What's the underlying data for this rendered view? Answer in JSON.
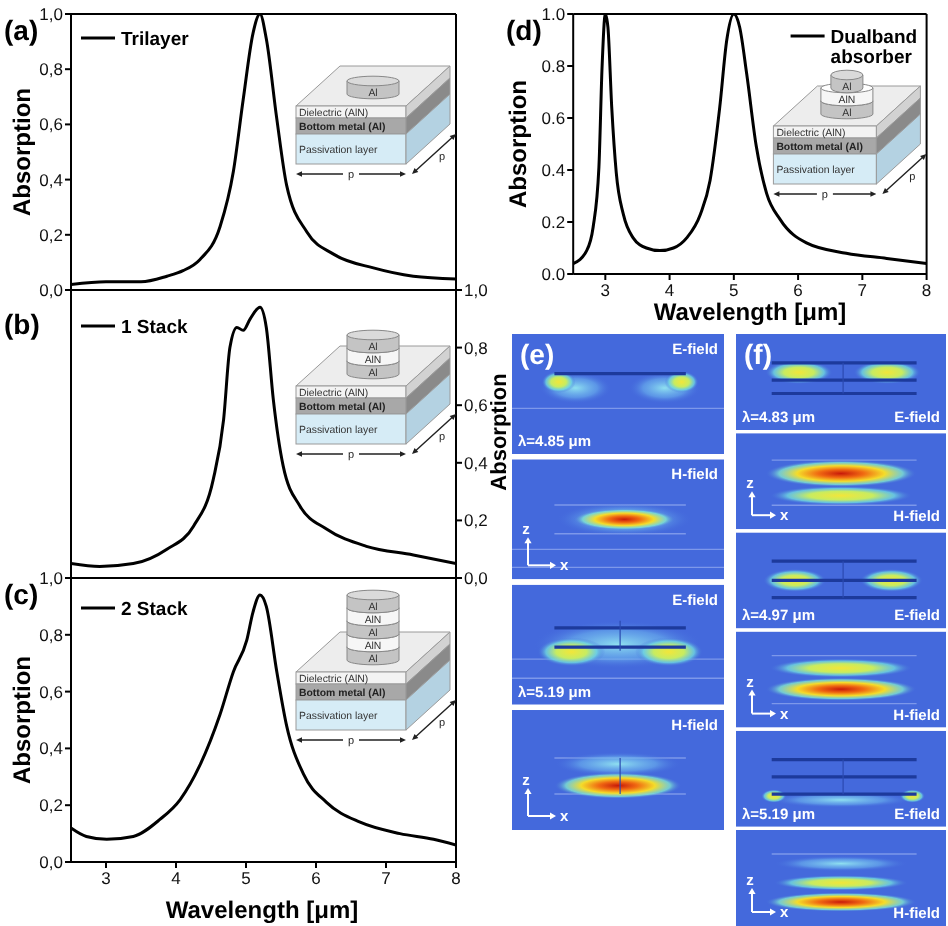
{
  "chart_data": [
    {
      "type": "line",
      "title": "(a)",
      "ylabel": "Absorption",
      "x": [
        2.5,
        3.0,
        3.5,
        3.87,
        4.1,
        4.34,
        4.63,
        4.82,
        4.96,
        5.1,
        5.2,
        5.29,
        5.44,
        5.58,
        5.87,
        6.25,
        6.82,
        7.39,
        8.0
      ],
      "series": [
        {
          "name": "Trilayer",
          "color": "#000000",
          "values": [
            0.02,
            0.03,
            0.03,
            0.05,
            0.07,
            0.11,
            0.23,
            0.43,
            0.69,
            0.93,
            1.0,
            0.91,
            0.62,
            0.38,
            0.21,
            0.13,
            0.08,
            0.05,
            0.04
          ]
        }
      ],
      "xlim": [
        2.5,
        8
      ],
      "xticks": [
        3,
        4,
        5,
        6,
        7,
        8
      ],
      "ylim": [
        0,
        1
      ],
      "yticks": [
        {
          "value": 0,
          "label": "0,0"
        },
        {
          "value": 0.2,
          "label": "0,2"
        },
        {
          "value": 0.4,
          "label": "0,4"
        },
        {
          "value": 0.6,
          "label": "0,6"
        },
        {
          "value": 0.8,
          "label": "0,8"
        },
        {
          "value": 1,
          "label": "1,0"
        }
      ],
      "tick_labels": "y",
      "legend": "top left",
      "annotations": [
        "Al",
        "Dielectric (AlN)",
        "Bottom metal (Al)",
        "Passivation layer",
        "p",
        "p"
      ]
    },
    {
      "type": "line",
      "title": "(b)",
      "ylabel": "Absorption",
      "x": [
        2.5,
        2.91,
        3.39,
        3.87,
        4.25,
        4.53,
        4.68,
        4.77,
        4.87,
        4.96,
        5.06,
        5.2,
        5.29,
        5.39,
        5.53,
        5.77,
        6.15,
        6.72,
        7.39,
        8.0
      ],
      "series": [
        {
          "name": "1 Stack",
          "color": "#000000",
          "values": [
            0.05,
            0.04,
            0.05,
            0.1,
            0.18,
            0.34,
            0.55,
            0.8,
            0.87,
            0.86,
            0.9,
            0.94,
            0.87,
            0.62,
            0.39,
            0.25,
            0.17,
            0.11,
            0.08,
            0.05
          ]
        }
      ],
      "xlim": [
        2.5,
        8
      ],
      "xticks": [
        3,
        4,
        5,
        6,
        7,
        8
      ],
      "ylim": [
        0,
        1
      ],
      "yticks": [
        {
          "value": 0,
          "label": "0,0"
        },
        {
          "value": 0.2,
          "label": "0,2"
        },
        {
          "value": 0.4,
          "label": "0,4"
        },
        {
          "value": 0.6,
          "label": "0,6"
        },
        {
          "value": 0.8,
          "label": "0,8"
        },
        {
          "value": 1,
          "label": "1,0"
        }
      ],
      "tick_labels": "y",
      "legend": "top left",
      "annotations": [
        "Al",
        "AlN",
        "Al",
        "Dielectric (AlN)",
        "Bottom metal (Al)",
        "Passivation layer",
        "p",
        "p"
      ]
    },
    {
      "type": "line",
      "title": "(c)",
      "xlabel": "Wavelength [μm]",
      "ylabel": "Absorption",
      "x": [
        2.5,
        2.72,
        3.01,
        3.39,
        3.77,
        4.06,
        4.34,
        4.63,
        4.82,
        5.01,
        5.1,
        5.2,
        5.29,
        5.44,
        5.58,
        5.82,
        6.15,
        6.63,
        7.2,
        7.68,
        8.0
      ],
      "series": [
        {
          "name": "2 Stack",
          "color": "#000000",
          "values": [
            0.12,
            0.09,
            0.08,
            0.09,
            0.15,
            0.22,
            0.34,
            0.52,
            0.67,
            0.78,
            0.88,
            0.94,
            0.9,
            0.67,
            0.48,
            0.31,
            0.21,
            0.14,
            0.1,
            0.08,
            0.06
          ]
        }
      ],
      "xlim": [
        2.5,
        8
      ],
      "xticks": [
        3,
        4,
        5,
        6,
        7,
        8
      ],
      "ylim": [
        0,
        1
      ],
      "yticks": [
        {
          "value": 0,
          "label": "0,0"
        },
        {
          "value": 0.2,
          "label": "0,2"
        },
        {
          "value": 0.4,
          "label": "0,4"
        },
        {
          "value": 0.6,
          "label": "0,6"
        },
        {
          "value": 0.8,
          "label": "0,8"
        },
        {
          "value": 1,
          "label": "1,0"
        }
      ],
      "legend": "top left",
      "annotations": [
        "Al",
        "AlN",
        "Al",
        "AlN",
        "Al",
        "Dielectric (AlN)",
        "Bottom metal (Al)",
        "Passivation layer",
        "p",
        "p"
      ]
    },
    {
      "type": "line",
      "title": "(d)",
      "xlabel": "Wavelength [μm]",
      "ylabel": "Absorption",
      "x": [
        2.5,
        2.71,
        2.81,
        2.9,
        2.95,
        3.0,
        3.04,
        3.1,
        3.17,
        3.28,
        3.43,
        3.64,
        3.85,
        4.06,
        4.27,
        4.48,
        4.63,
        4.78,
        4.89,
        5.0,
        5.09,
        5.2,
        5.35,
        5.51,
        5.72,
        6.13,
        6.75,
        7.38,
        8.0
      ],
      "series": [
        {
          "name": "Dualband absorber",
          "color": "#000000",
          "values": [
            0.04,
            0.09,
            0.18,
            0.41,
            0.8,
            1.0,
            0.95,
            0.64,
            0.39,
            0.23,
            0.14,
            0.1,
            0.09,
            0.1,
            0.14,
            0.23,
            0.36,
            0.64,
            0.9,
            1.0,
            0.95,
            0.77,
            0.49,
            0.31,
            0.21,
            0.12,
            0.08,
            0.06,
            0.04
          ]
        }
      ],
      "xlim": [
        2.5,
        8
      ],
      "xticks": [
        3,
        4,
        5,
        6,
        7,
        8
      ],
      "ylim": [
        0,
        1
      ],
      "yticks": [
        {
          "value": 0,
          "label": "0.0"
        },
        0.2,
        0.4,
        0.6,
        0.8,
        {
          "value": 1,
          "label": "1.0"
        }
      ],
      "legend": "top right",
      "annotations": [
        "Al",
        "AlN",
        "Al",
        "Dielectric (AlN)",
        "Bottom metal (Al)",
        "Passivation layer",
        "p",
        "p"
      ]
    },
    {
      "type": "other",
      "title": "(e)",
      "annotations": [
        "E-field",
        "λ=4.85 μm",
        "H-field",
        "z",
        "x",
        "E-field",
        "λ=5.19 μm",
        "H-field",
        "z",
        "x"
      ]
    },
    {
      "type": "other",
      "title": "(f)",
      "annotations": [
        "λ=4.83 μm",
        "E-field",
        "z",
        "x",
        "H-field",
        "λ=4.97 μm",
        "E-field",
        "z",
        "x",
        "H-field",
        "λ=5.19 μm",
        "E-field",
        "z",
        "x",
        "H-field"
      ]
    }
  ]
}
